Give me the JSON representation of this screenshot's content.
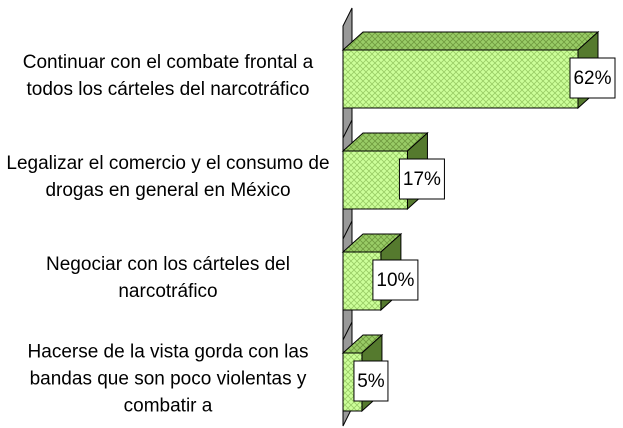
{
  "chart_data": {
    "type": "bar3d_h",
    "categories": [
      "Continuar con el combate frontal a todos los cárteles del narcotráfico",
      "Legalizar el comercio y el consumo de drogas en general en México",
      "Negociar con los cárteles del narcotráfico",
      "Hacerse de la vista gorda con las bandas que son poco violentas y combatir a"
    ],
    "values": [
      62,
      17,
      10,
      5
    ],
    "value_labels": [
      "62%",
      "17%",
      "10%",
      "5%"
    ],
    "color": "#ccff99"
  }
}
